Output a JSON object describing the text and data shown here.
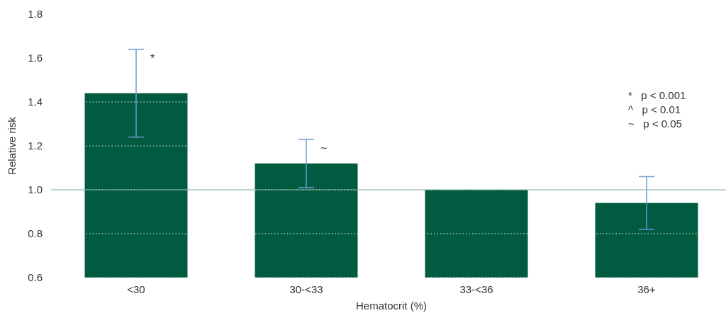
{
  "chart_data": {
    "type": "bar",
    "xlabel": "Hematocrit (%)",
    "ylabel": "Relative risk",
    "categories": [
      "<30",
      "30-<33",
      "33-<36",
      "36+"
    ],
    "values": [
      1.44,
      1.12,
      1.0,
      0.94
    ],
    "errors": [
      [
        1.24,
        1.64
      ],
      [
        1.01,
        1.23
      ],
      null,
      [
        0.82,
        1.06
      ]
    ],
    "color": "#005b40",
    "ylim": [
      0.6,
      1.8
    ],
    "yticks": [
      {
        "value": 0.6,
        "label": "0.6"
      },
      {
        "value": 0.8,
        "label": "0.8"
      },
      {
        "value": 1.0,
        "label": "1.0"
      },
      {
        "value": 1.2,
        "label": "1.2"
      },
      {
        "value": 1.4,
        "label": "1.4"
      },
      {
        "value": 1.6,
        "label": "1.6"
      },
      {
        "value": 1.8,
        "label": "1.8"
      }
    ],
    "grid": "y",
    "ref_lines": [
      {
        "axis": "y",
        "value": 1.0,
        "color": "#7fa89c"
      }
    ],
    "annotations": [
      {
        "text": "*",
        "x": "<30",
        "y": 1.64
      },
      {
        "text": "~",
        "x": "30-<33",
        "y": 1.23
      },
      "*   p < 0.001",
      "^   p < 0.01",
      "~   p < 0.05"
    ]
  }
}
